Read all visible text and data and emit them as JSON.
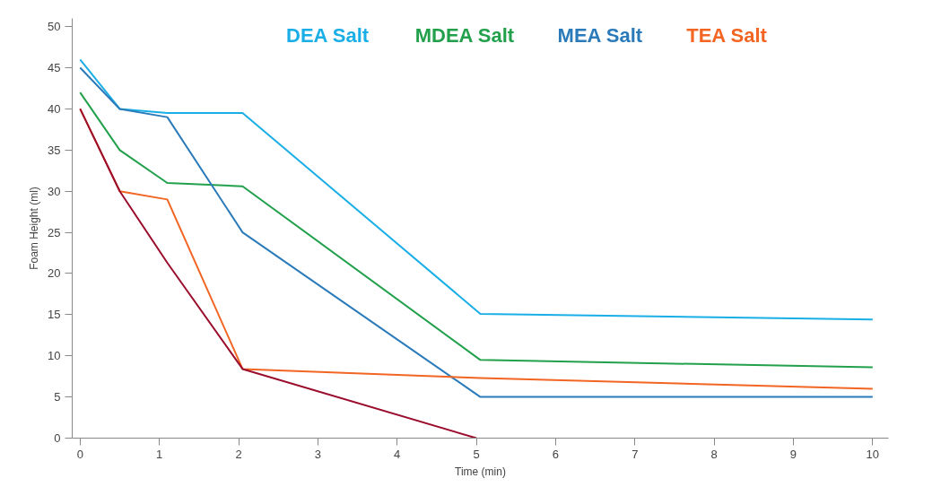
{
  "chart_data": {
    "type": "line",
    "xlabel": "Time (min)",
    "ylabel": "Foam Height (ml)",
    "xlim": [
      -0.1,
      10.2
    ],
    "ylim": [
      0,
      51
    ],
    "xticks": [
      0,
      1,
      2,
      3,
      4,
      5,
      6,
      7,
      8,
      9,
      10
    ],
    "yticks": [
      0,
      5,
      10,
      15,
      20,
      25,
      30,
      35,
      40,
      45,
      50
    ],
    "grid": false,
    "legend": "top",
    "marker": "none",
    "line_style": "solid",
    "series": [
      {
        "name": "DEA Salt",
        "color": "#1aaee6",
        "x": [
          0,
          0.5,
          1.1,
          2.05,
          5.05,
          10
        ],
        "values": [
          46,
          40,
          39.5,
          39.5,
          15.1,
          14.4
        ]
      },
      {
        "name": "MDEA Salt",
        "color": "#22a04b",
        "x": [
          0,
          0.5,
          1.1,
          2.05,
          5.05,
          10
        ],
        "values": [
          42,
          35,
          31,
          30.6,
          9.5,
          8.6
        ]
      },
      {
        "name": "MEA Salt",
        "color": "#2b7bba",
        "x": [
          0,
          0.5,
          1.1,
          2.05,
          5.05,
          10
        ],
        "values": [
          45,
          40,
          39,
          25,
          5,
          5
        ]
      },
      {
        "name": "TEA Salt",
        "color": "#f26522",
        "x": [
          0,
          0.5,
          1.1,
          2.05,
          5.05,
          10
        ],
        "values": [
          40,
          30,
          29,
          8.4,
          7.3,
          6
        ]
      },
      {
        "color": "#9b0d2c",
        "x": [
          0,
          0.5,
          1.1,
          2.05,
          5
        ],
        "values": [
          40,
          30,
          21.3,
          8.4,
          0
        ]
      }
    ]
  }
}
